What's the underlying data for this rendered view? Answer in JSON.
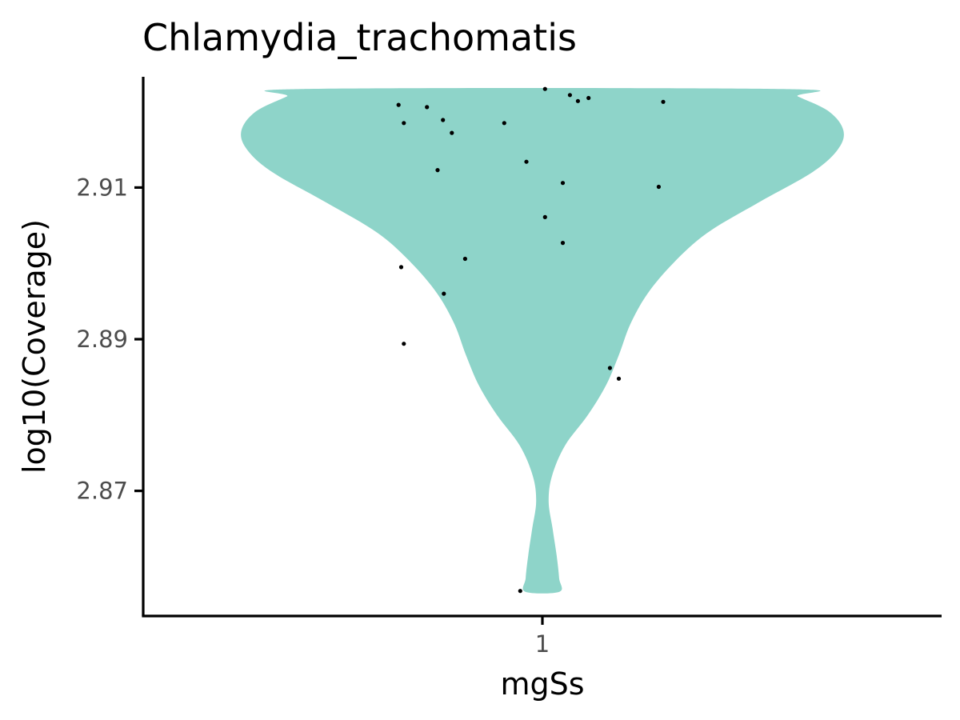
{
  "chart_data": {
    "type": "violin",
    "title": "Chlamydia_trachomatis",
    "xlabel": "mgSs",
    "ylabel": "log10(Coverage)",
    "categories": [
      "1"
    ],
    "yticks": [
      "2.87",
      "2.89",
      "2.91"
    ],
    "ylim": [
      2.8535,
      2.9246
    ],
    "violin": {
      "color": "#8ED4C9",
      "profile": [
        {
          "y": 2.8567,
          "w": 0.06
        },
        {
          "y": 2.8585,
          "w": 0.059
        },
        {
          "y": 2.8615,
          "w": 0.05
        },
        {
          "y": 2.865,
          "w": 0.036
        },
        {
          "y": 2.8686,
          "w": 0.022
        },
        {
          "y": 2.872,
          "w": 0.034
        },
        {
          "y": 2.876,
          "w": 0.08
        },
        {
          "y": 2.88,
          "w": 0.16
        },
        {
          "y": 2.884,
          "w": 0.225
        },
        {
          "y": 2.888,
          "w": 0.27
        },
        {
          "y": 2.892,
          "w": 0.31
        },
        {
          "y": 2.896,
          "w": 0.37
        },
        {
          "y": 2.9,
          "w": 0.46
        },
        {
          "y": 2.904,
          "w": 0.58
        },
        {
          "y": 2.908,
          "w": 0.76
        },
        {
          "y": 2.912,
          "w": 0.95
        },
        {
          "y": 2.915,
          "w": 1.04
        },
        {
          "y": 2.9175,
          "w": 1.06
        },
        {
          "y": 2.92,
          "w": 1.01
        },
        {
          "y": 2.922,
          "w": 0.9
        },
        {
          "y": 2.923,
          "w": 0.84
        }
      ]
    },
    "points": [
      {
        "x": 1.003,
        "y": 2.923
      },
      {
        "x": 1.031,
        "y": 2.9222
      },
      {
        "x": 1.052,
        "y": 2.9218
      },
      {
        "x": 1.04,
        "y": 2.9214
      },
      {
        "x": 1.136,
        "y": 2.9213
      },
      {
        "x": 0.838,
        "y": 2.9209
      },
      {
        "x": 0.87,
        "y": 2.9206
      },
      {
        "x": 0.888,
        "y": 2.9189
      },
      {
        "x": 0.844,
        "y": 2.9185
      },
      {
        "x": 0.957,
        "y": 2.9185
      },
      {
        "x": 0.898,
        "y": 2.9172
      },
      {
        "x": 0.982,
        "y": 2.9134
      },
      {
        "x": 0.882,
        "y": 2.9123
      },
      {
        "x": 1.023,
        "y": 2.9106
      },
      {
        "x": 1.131,
        "y": 2.9101
      },
      {
        "x": 1.003,
        "y": 2.9061
      },
      {
        "x": 1.023,
        "y": 2.9027
      },
      {
        "x": 0.913,
        "y": 2.9006
      },
      {
        "x": 0.841,
        "y": 2.8995
      },
      {
        "x": 0.889,
        "y": 2.896
      },
      {
        "x": 0.844,
        "y": 2.8894
      },
      {
        "x": 1.076,
        "y": 2.8862
      },
      {
        "x": 1.086,
        "y": 2.8848
      },
      {
        "x": 0.975,
        "y": 2.8568
      }
    ],
    "point_color": "#000000",
    "grid": false,
    "legend": "none"
  }
}
